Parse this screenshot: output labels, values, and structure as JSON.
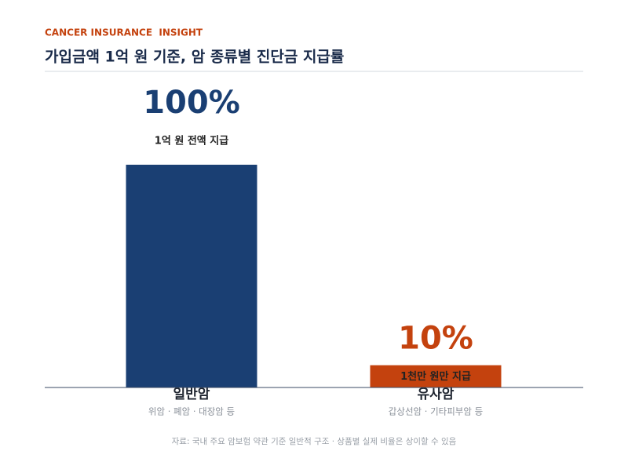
{
  "chart_data": {
    "type": "bar",
    "kicker": "CANCER INSURANCE  INSIGHT",
    "title": "가입금액 1억 원 기준, 암 종류별 진단금 지급률",
    "categories": [
      "일반암",
      "유사암"
    ],
    "category_notes": [
      "위암 · 폐암 · 대장암 등",
      "갑상선암 · 기타피부암 등"
    ],
    "values": [
      100,
      10
    ],
    "value_labels": [
      "100%",
      "10%"
    ],
    "value_notes": [
      "1억 원 전액 지급",
      "1천만 원만 지급"
    ],
    "colors": [
      "#1a3f73",
      "#c4420e"
    ],
    "source": "자료: 국내 주요 암보험 약관 기준 일반적 구조 · 상품별 실제 비율은 상이할 수 있음"
  }
}
